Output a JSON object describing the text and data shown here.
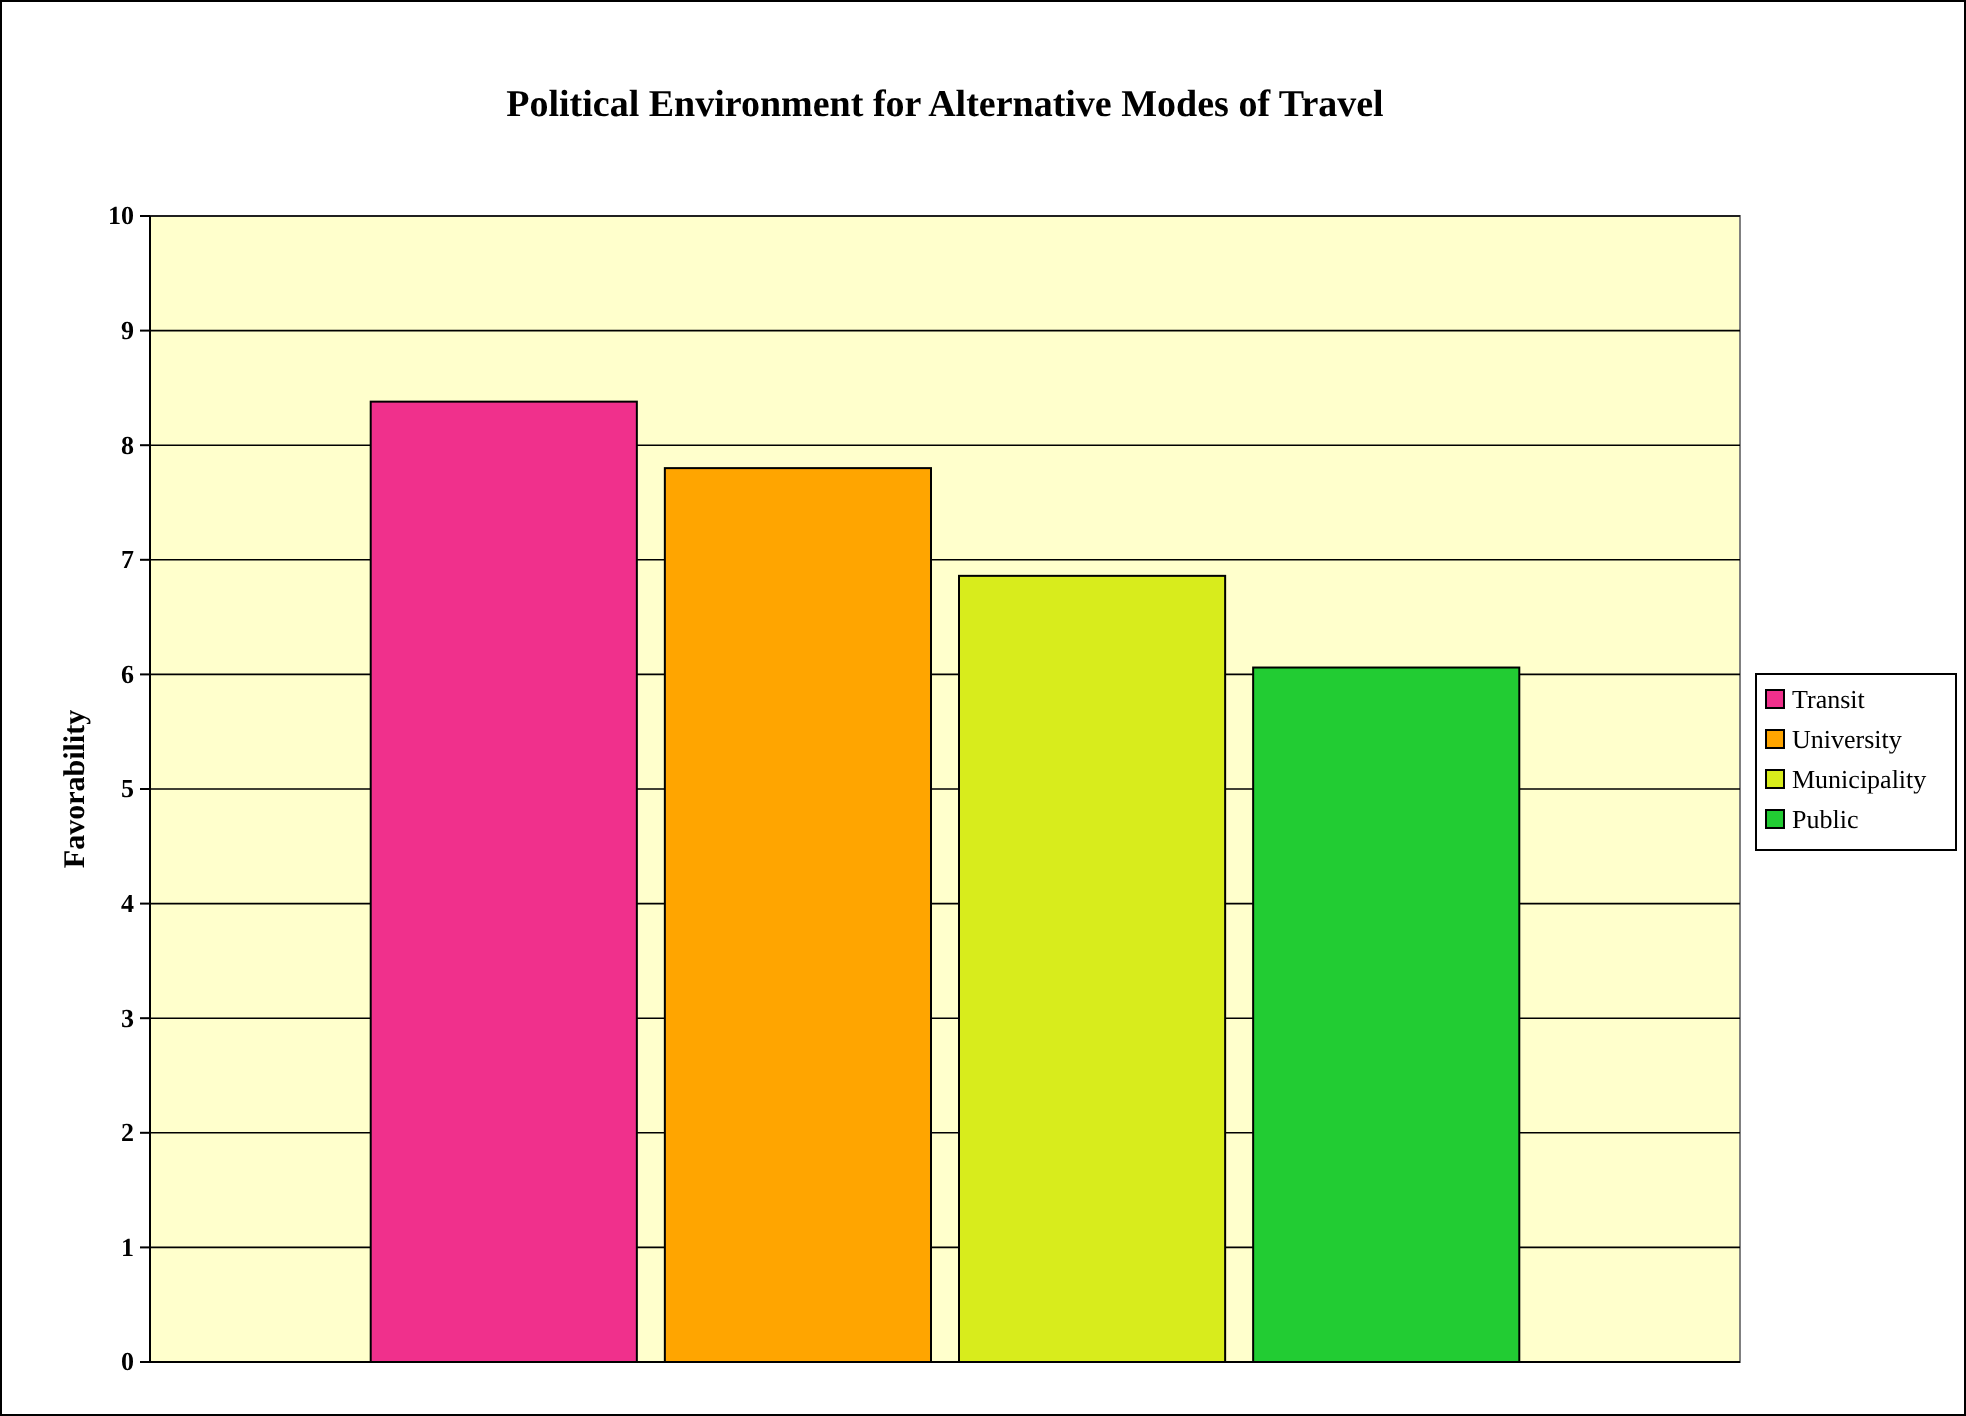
{
  "chart_data": {
    "type": "bar",
    "title": "Political Environment for Alternative Modes of Travel",
    "ylabel": "Favorability",
    "categories": [
      null
    ],
    "series": [
      {
        "name": "Transit",
        "color": "#f0308c",
        "values": [
          8.38
        ]
      },
      {
        "name": "University",
        "color": "#ffa500",
        "values": [
          7.8
        ]
      },
      {
        "name": "Municipality",
        "color": "#d8ec1c",
        "values": [
          6.86
        ]
      },
      {
        "name": "Public",
        "color": "#22cc33",
        "values": [
          6.06
        ]
      }
    ],
    "ylim": [
      0,
      10
    ],
    "yticks": [
      0,
      1,
      2,
      3,
      4,
      5,
      6,
      7,
      8,
      9,
      10
    ],
    "grid": "y",
    "legend": "right"
  }
}
